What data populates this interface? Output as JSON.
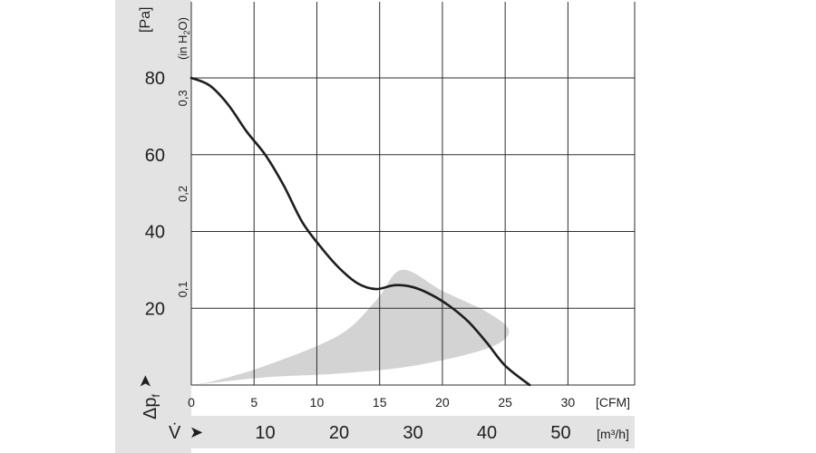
{
  "chart_data": {
    "type": "line",
    "title": "",
    "pressure_axis": {
      "symbol": "Δp",
      "subscript": "f",
      "arrow": "➤",
      "unit": "[Pa]",
      "ticks": [
        20,
        40,
        60,
        80
      ],
      "range": [
        0,
        80
      ]
    },
    "h2o_axis": {
      "unit_prefix": "(in H",
      "unit_sub": "2",
      "unit_suffix": "O)",
      "ticks": [
        "0,1",
        "0,2",
        "0,3"
      ],
      "tick_values": [
        0.1,
        0.2,
        0.3
      ]
    },
    "cfm_axis": {
      "unit": "[CFM]",
      "ticks": [
        0,
        5,
        10,
        15,
        20,
        25,
        30
      ],
      "range": [
        0,
        30
      ]
    },
    "flow_axis": {
      "symbol": "V̇",
      "arrow": "➤",
      "unit": "[m³/h]",
      "ticks": [
        10,
        20,
        30,
        40,
        50
      ],
      "range": [
        0,
        60
      ]
    },
    "grid": true,
    "series": [
      {
        "x_unit": "m³/h",
        "y_unit": "Pa",
        "points": [
          [
            0,
            80.0
          ],
          [
            2.5,
            78.0
          ],
          [
            5.0,
            73.0
          ],
          [
            7.5,
            66.0
          ],
          [
            10.0,
            60.0
          ],
          [
            12.5,
            52.0
          ],
          [
            15.0,
            42.5
          ],
          [
            17.5,
            36.0
          ],
          [
            20.0,
            30.5
          ],
          [
            22.5,
            26.5
          ],
          [
            25.0,
            25.0
          ],
          [
            27.5,
            26.0
          ],
          [
            30.0,
            25.5
          ],
          [
            32.5,
            23.5
          ],
          [
            35.0,
            20.5
          ],
          [
            37.5,
            16.5
          ],
          [
            40.0,
            11.0
          ],
          [
            42.5,
            5.0
          ],
          [
            45.8,
            0.0
          ]
        ]
      }
    ],
    "operating_range": {
      "color": "#d3d3d3",
      "points": [
        [
          0,
          0
        ],
        [
          10,
          2.0
        ],
        [
          20,
          3.0
        ],
        [
          30,
          5.0
        ],
        [
          40,
          9.5
        ],
        [
          43,
          14.0
        ],
        [
          40,
          19.0
        ],
        [
          34,
          24.5
        ],
        [
          28.5,
          30.0
        ],
        [
          25,
          22.0
        ],
        [
          20,
          13.0
        ],
        [
          10,
          5.0
        ],
        [
          3,
          1.0
        ]
      ]
    }
  },
  "colors": {
    "panel_band": "#e3e3e3",
    "grid": "#2d2d2d",
    "curve": "#1e1e1e"
  }
}
